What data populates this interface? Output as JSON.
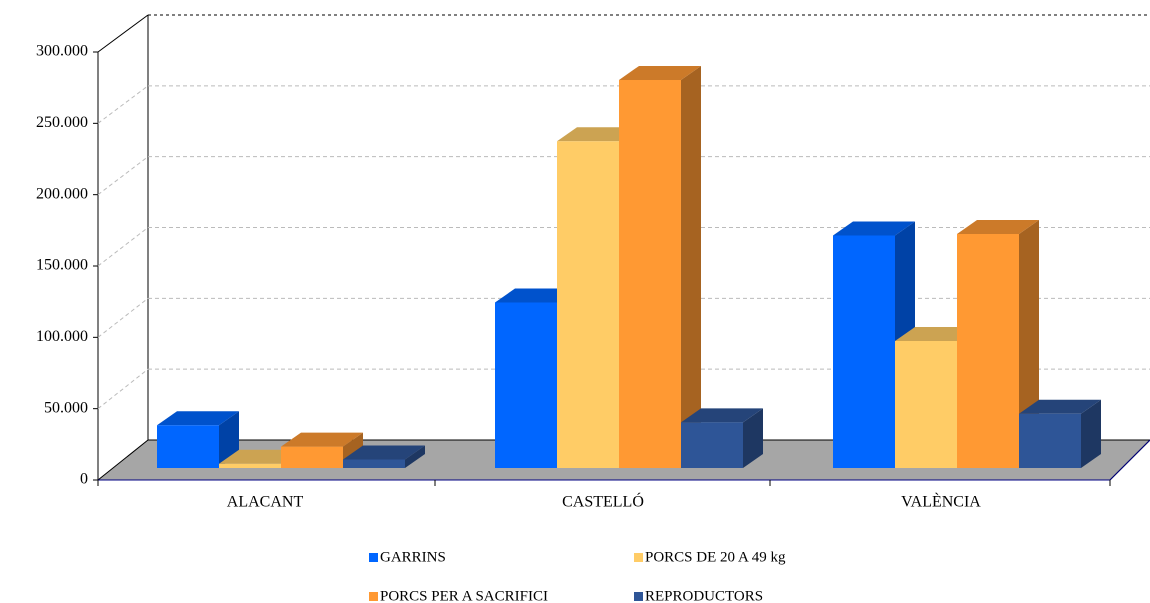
{
  "chart_data": {
    "type": "bar3d",
    "categories": [
      "ALACANT",
      "CASTELLÓ",
      "VALÈNCIA"
    ],
    "series": [
      {
        "name": "GARRINS",
        "color": "#0066ff",
        "values": [
          30000,
          116000,
          163000
        ]
      },
      {
        "name": "PORCS DE 20 A 49 kg",
        "color": "#ffcc66",
        "values": [
          3000,
          229000,
          89000
        ]
      },
      {
        "name": "PORCS PER A SACRIFICI",
        "color": "#ff9933",
        "values": [
          15000,
          272000,
          164000
        ]
      },
      {
        "name": "REPRODUCTORS",
        "color": "#2e5597",
        "values": [
          6000,
          32000,
          38000
        ]
      }
    ],
    "ylim": [
      0,
      300000
    ],
    "yticks": [
      0,
      {
        "value": 50000,
        "label": "50.000"
      },
      {
        "value": 100000,
        "label": "100.000"
      },
      {
        "value": 150000,
        "label": "150.000"
      },
      {
        "value": 200000,
        "label": "200.000"
      },
      {
        "value": 250000,
        "label": "250.000"
      },
      {
        "value": 300000,
        "label": "300.000"
      }
    ],
    "grid": true
  }
}
